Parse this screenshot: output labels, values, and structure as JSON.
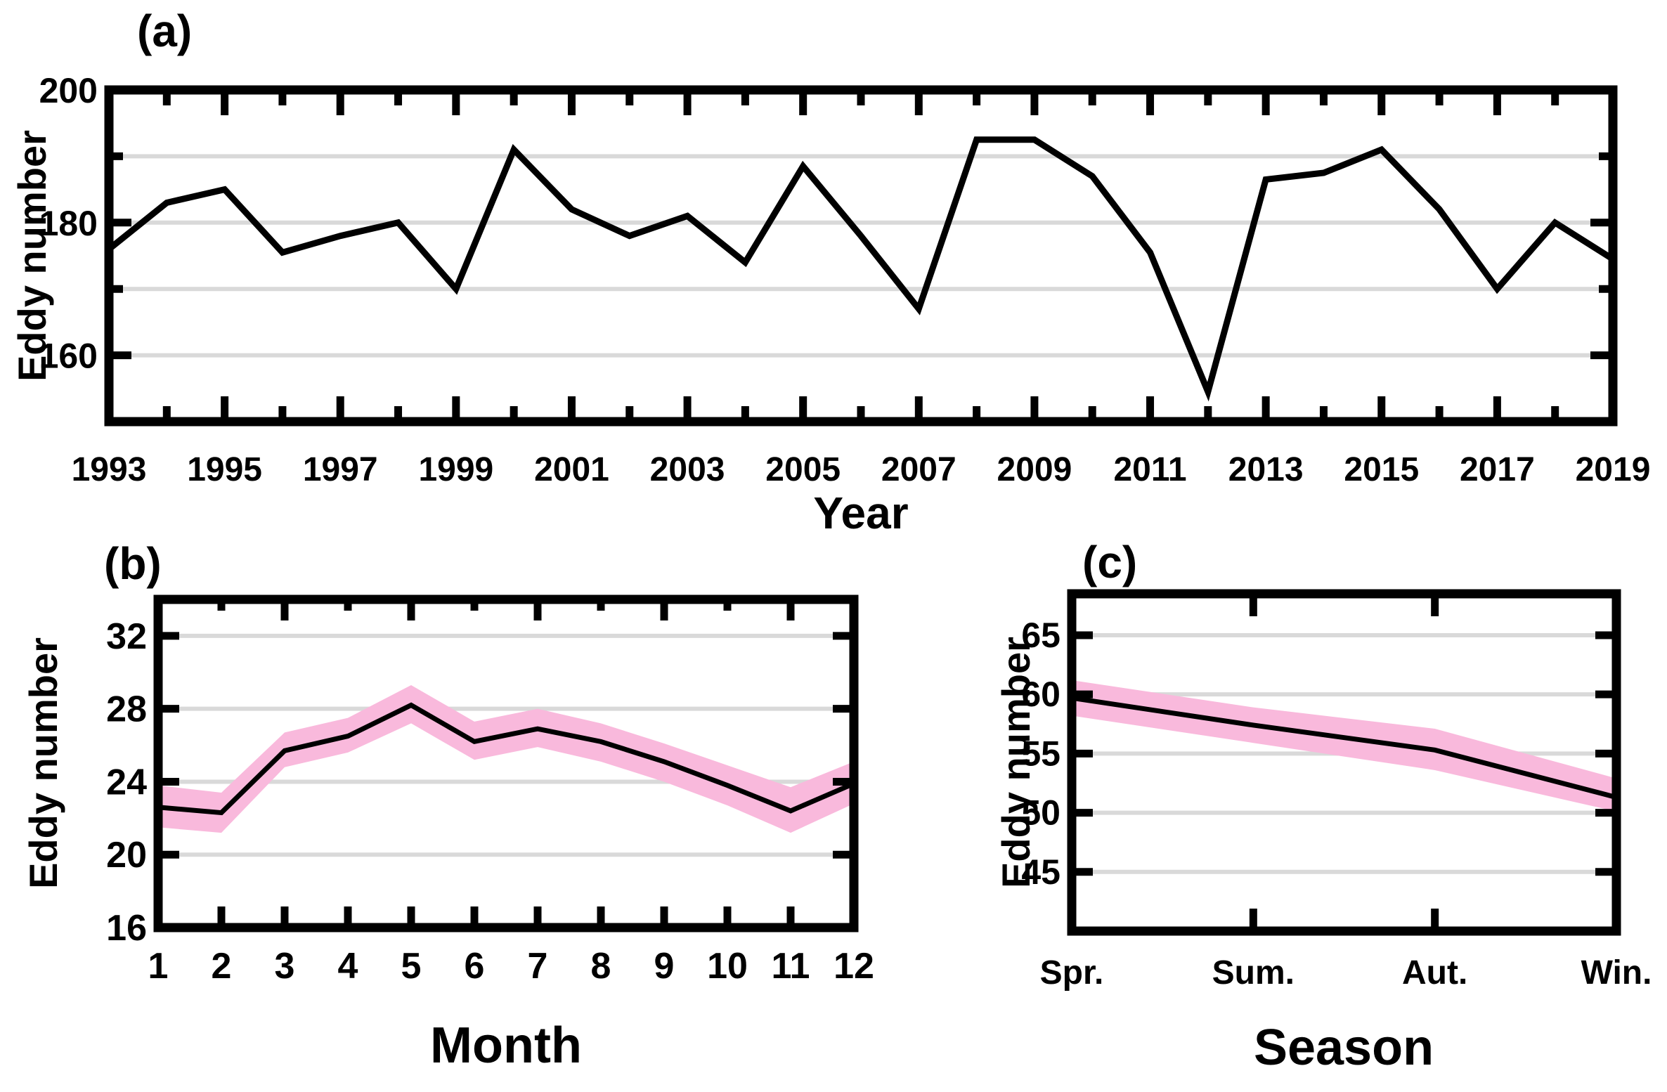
{
  "palette": {
    "line": "#000000",
    "band_pink": "#F9B9DC",
    "gridline": "#D9D9D9",
    "frame": "#000000",
    "background": "#FFFFFF"
  },
  "chart_data": [
    {
      "id": "a",
      "panel_label": "(a)",
      "type": "line",
      "xlabel": "Year",
      "ylabel": "Eddy number",
      "x": [
        1993,
        1994,
        1995,
        1996,
        1997,
        1998,
        1999,
        2000,
        2001,
        2002,
        2003,
        2004,
        2005,
        2006,
        2007,
        2008,
        2009,
        2010,
        2011,
        2012,
        2013,
        2014,
        2015,
        2016,
        2017,
        2018,
        2019
      ],
      "values": [
        176,
        183,
        185,
        175.5,
        178,
        180,
        170,
        191,
        182,
        178,
        181,
        174,
        188.5,
        178,
        167,
        192.5,
        192.5,
        187,
        175.5,
        154.5,
        186.5,
        187.5,
        191,
        182,
        170,
        180,
        174.5
      ],
      "xlim": [
        1993,
        2019
      ],
      "ylim": [
        150,
        200
      ],
      "gridlines": [
        160,
        170,
        180,
        190
      ],
      "x_major_ticks": [
        1993,
        1995,
        1997,
        1999,
        2001,
        2003,
        2005,
        2007,
        2009,
        2011,
        2013,
        2015,
        2017,
        2019
      ],
      "x_minor_ticks": [
        1994,
        1996,
        1998,
        2000,
        2002,
        2004,
        2006,
        2008,
        2010,
        2012,
        2014,
        2016,
        2018
      ],
      "x_tick_label_values": [
        1993,
        1995,
        1997,
        1999,
        2001,
        2003,
        2005,
        2007,
        2009,
        2011,
        2013,
        2015,
        2017,
        2019
      ],
      "x_tick_labels": [
        "1993",
        "1995",
        "1997",
        "1999",
        "2001",
        "2003",
        "2005",
        "2007",
        "2009",
        "2011",
        "2013",
        "2015",
        "2017",
        "2019"
      ],
      "y_major_ticks": [
        160,
        180,
        200
      ],
      "y_minor_ticks": [
        170,
        190
      ],
      "y_tick_label_values": [
        160,
        180,
        200
      ],
      "y_tick_labels": [
        "160",
        "180",
        "200"
      ],
      "legend": "none",
      "grid": "on"
    },
    {
      "id": "b",
      "panel_label": "(b)",
      "type": "line",
      "xlabel": "Month",
      "ylabel": "Eddy number",
      "x": [
        1,
        2,
        3,
        4,
        5,
        6,
        7,
        8,
        9,
        10,
        11,
        12
      ],
      "values": [
        22.6,
        22.3,
        25.7,
        26.5,
        28.2,
        26.2,
        26.9,
        26.2,
        25.1,
        23.8,
        22.4,
        23.9
      ],
      "band_upper": [
        23.8,
        23.4,
        26.7,
        27.5,
        29.3,
        27.3,
        28.0,
        27.2,
        26.1,
        24.9,
        23.7,
        25.1
      ],
      "band_lower": [
        21.5,
        21.2,
        24.8,
        25.6,
        27.2,
        25.2,
        25.9,
        25.1,
        24.0,
        22.7,
        21.2,
        22.8
      ],
      "xlim": [
        1,
        12
      ],
      "ylim": [
        16,
        34
      ],
      "gridlines": [
        20,
        24,
        28,
        32
      ],
      "x_major_ticks": [
        1,
        2,
        3,
        4,
        5,
        6,
        7,
        8,
        9,
        10,
        11,
        12
      ],
      "x_minor_ticks": [],
      "x_top_major_ticks": [
        1,
        3,
        5,
        7,
        9,
        11
      ],
      "x_top_minor_ticks": [
        2,
        4,
        6,
        8,
        10,
        12
      ],
      "x_tick_label_values": [
        1,
        2,
        3,
        4,
        5,
        6,
        7,
        8,
        9,
        10,
        11,
        12
      ],
      "x_tick_labels": [
        "1",
        "2",
        "3",
        "4",
        "5",
        "6",
        "7",
        "8",
        "9",
        "10",
        "11",
        "12"
      ],
      "y_major_ticks": [
        16,
        20,
        24,
        28,
        32
      ],
      "y_minor_ticks": [],
      "y_tick_label_values": [
        16,
        20,
        24,
        28,
        32
      ],
      "y_tick_labels": [
        "16",
        "20",
        "24",
        "28",
        "32"
      ],
      "legend": "none",
      "grid": "on"
    },
    {
      "id": "c",
      "panel_label": "(c)",
      "type": "line",
      "xlabel": "Season",
      "ylabel": "Eddy number",
      "categories": [
        "Spr.",
        "Sum.",
        "Aut.",
        "Win."
      ],
      "x": [
        0,
        1,
        2,
        3
      ],
      "values": [
        59.7,
        57.4,
        55.3,
        51.3
      ],
      "band_upper": [
        61.2,
        58.9,
        57.1,
        52.9
      ],
      "band_lower": [
        58.2,
        55.9,
        53.6,
        50.1
      ],
      "xlim": [
        0,
        3
      ],
      "ylim": [
        40,
        68.5
      ],
      "gridlines": [
        45,
        50,
        55,
        60,
        65
      ],
      "x_major_ticks": [
        1,
        2
      ],
      "x_minor_ticks": [],
      "x_tick_label_values": [
        0,
        1,
        2,
        3
      ],
      "x_tick_labels": [
        "Spr.",
        "Sum.",
        "Aut.",
        "Win."
      ],
      "y_major_ticks": [
        45,
        50,
        55,
        60,
        65
      ],
      "y_minor_ticks": [],
      "y_tick_label_values": [
        45,
        50,
        55,
        60,
        65
      ],
      "y_tick_labels": [
        "45",
        "50",
        "55",
        "60",
        "65"
      ],
      "legend": "none",
      "grid": "on"
    }
  ]
}
